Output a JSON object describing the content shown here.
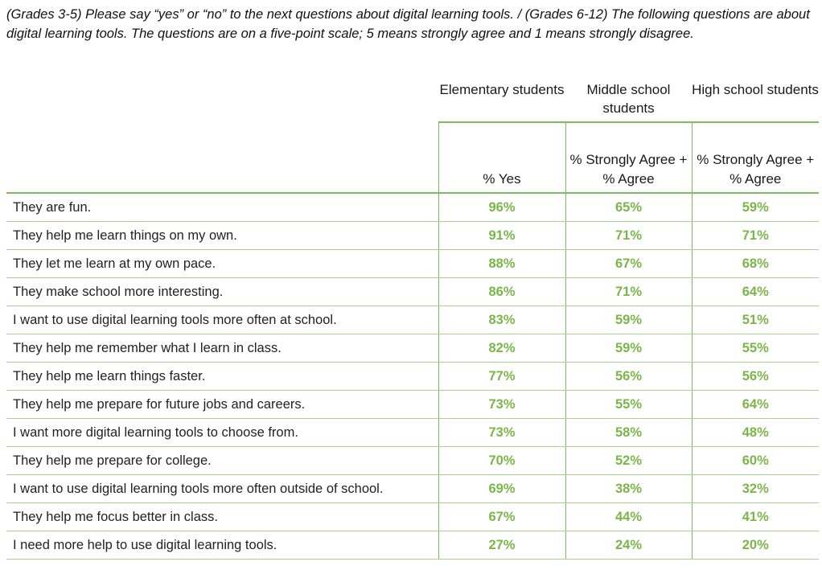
{
  "intro": "(Grades 3-5) Please say “yes” or “no” to the next questions about digital learning tools. / (Grades 6-12) The following questions are about digital learning tools. The questions are on a five-point scale; 5 means strongly agree and 1 means strongly disagree.",
  "table": {
    "group_headers": {
      "elementary": "Elementary students",
      "middle": "Middle school students",
      "high": "High school students"
    },
    "sub_headers": {
      "elementary": "% Yes",
      "middle": "% Strongly Agree + % Agree",
      "high": "% Strongly Agree + % Agree"
    },
    "rows": [
      {
        "statement": "They are fun.",
        "elementary": "96%",
        "middle": "65%",
        "high": "59%"
      },
      {
        "statement": "They help me learn things on my own.",
        "elementary": "91%",
        "middle": "71%",
        "high": "71%"
      },
      {
        "statement": "They let me learn at my own pace.",
        "elementary": "88%",
        "middle": "67%",
        "high": "68%"
      },
      {
        "statement": "They make school more interesting.",
        "elementary": "86%",
        "middle": "71%",
        "high": "64%"
      },
      {
        "statement": "I want to use digital learning tools more often at school.",
        "elementary": "83%",
        "middle": "59%",
        "high": "51%"
      },
      {
        "statement": "They help me remember what I learn in class.",
        "elementary": "82%",
        "middle": "59%",
        "high": "55%"
      },
      {
        "statement": "They help me learn things faster.",
        "elementary": "77%",
        "middle": "56%",
        "high": "56%"
      },
      {
        "statement": "They help me prepare for future jobs and careers.",
        "elementary": "73%",
        "middle": "55%",
        "high": "64%"
      },
      {
        "statement": "I want more digital learning tools to choose from.",
        "elementary": "73%",
        "middle": "58%",
        "high": "48%"
      },
      {
        "statement": "They help me prepare for college.",
        "elementary": "70%",
        "middle": "52%",
        "high": "60%"
      },
      {
        "statement": "I want to use digital learning tools more often outside of school.",
        "elementary": "69%",
        "middle": "38%",
        "high": "32%"
      },
      {
        "statement": "They help me focus better in class.",
        "elementary": "67%",
        "middle": "44%",
        "high": "41%"
      },
      {
        "statement": "I need more help to use digital learning tools.",
        "elementary": "27%",
        "middle": "24%",
        "high": "20%"
      }
    ]
  },
  "colors": {
    "accent_green": "#7ab648",
    "rule_green": "#7dbb5c"
  }
}
